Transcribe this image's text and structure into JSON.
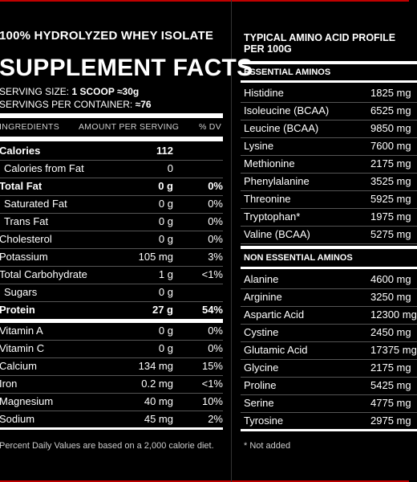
{
  "product_line": "100% HYDROLYZED WHEY ISOLATE",
  "facts_title": "SUPPLEMENT FACTS",
  "serving_size_label": "SERVING SIZE:",
  "serving_size_value": "1 SCOOP ≈30g",
  "servings_label": "SERVINGS PER CONTAINER:",
  "servings_value": "≈76",
  "columns": {
    "ingredients": "INGREDIENTS",
    "amount": "AMOUNT PER SERVING",
    "dv": "% DV"
  },
  "nutrients": [
    {
      "name": "Calories",
      "amount": "112",
      "dv": ""
    },
    {
      "name": "Calories from Fat",
      "amount": "0",
      "dv": ""
    },
    {
      "name": "Total Fat",
      "amount": "0 g",
      "dv": "0%"
    },
    {
      "name": "Saturated Fat",
      "amount": "0 g",
      "dv": "0%"
    },
    {
      "name": "Trans Fat",
      "amount": "0 g",
      "dv": "0%"
    },
    {
      "name": "Cholesterol",
      "amount": "0 g",
      "dv": "0%"
    },
    {
      "name": "Potassium",
      "amount": "105 mg",
      "dv": "3%"
    },
    {
      "name": "Total Carbohydrate",
      "amount": "1 g",
      "dv": "<1%"
    },
    {
      "name": "Sugars",
      "amount": "0 g",
      "dv": ""
    },
    {
      "name": "Protein",
      "amount": "27 g",
      "dv": "54%"
    },
    {
      "name": "Vitamin A",
      "amount": "0 g",
      "dv": "0%"
    },
    {
      "name": "Vitamin C",
      "amount": "0 g",
      "dv": "0%"
    },
    {
      "name": "Calcium",
      "amount": "134 mg",
      "dv": "15%"
    },
    {
      "name": "Iron",
      "amount": "0.2 mg",
      "dv": "<1%"
    },
    {
      "name": "Magnesium",
      "amount": "40 mg",
      "dv": "10%"
    },
    {
      "name": "Sodium",
      "amount": "45 mg",
      "dv": "2%"
    }
  ],
  "dv_note": "Percent Daily Values are based on a 2,000 calorie diet.",
  "amino_title_1": "TYPICAL AMINO ACID PROFILE",
  "amino_title_2": "PER 100G",
  "essential_title": "ESSENTIAL AMINOS",
  "essential": [
    {
      "name": "Histidine",
      "value": "1825 mg"
    },
    {
      "name": "Isoleucine (BCAA)",
      "value": "6525 mg"
    },
    {
      "name": "Leucine (BCAA)",
      "value": "9850 mg"
    },
    {
      "name": "Lysine",
      "value": "7600 mg"
    },
    {
      "name": "Methionine",
      "value": "2175 mg"
    },
    {
      "name": "Phenylalanine",
      "value": "3525 mg"
    },
    {
      "name": "Threonine",
      "value": "5925 mg"
    },
    {
      "name": "Tryptophan*",
      "value": "1975 mg"
    },
    {
      "name": "Valine (BCAA)",
      "value": "5275 mg"
    }
  ],
  "nonessential_title": "NON ESSENTIAL AMINOS",
  "nonessential": [
    {
      "name": "Alanine",
      "value": "4600 mg"
    },
    {
      "name": "Arginine",
      "value": "3250 mg"
    },
    {
      "name": "Aspartic Acid",
      "value": "12300 mg"
    },
    {
      "name": "Cystine",
      "value": "2450 mg"
    },
    {
      "name": "Glutamic Acid",
      "value": "17375 mg"
    },
    {
      "name": "Glycine",
      "value": "2175 mg"
    },
    {
      "name": "Proline",
      "value": "5425 mg"
    },
    {
      "name": "Serine",
      "value": "4775 mg"
    },
    {
      "name": "Tyrosine",
      "value": "2975 mg"
    }
  ],
  "not_added_note": "* Not added"
}
